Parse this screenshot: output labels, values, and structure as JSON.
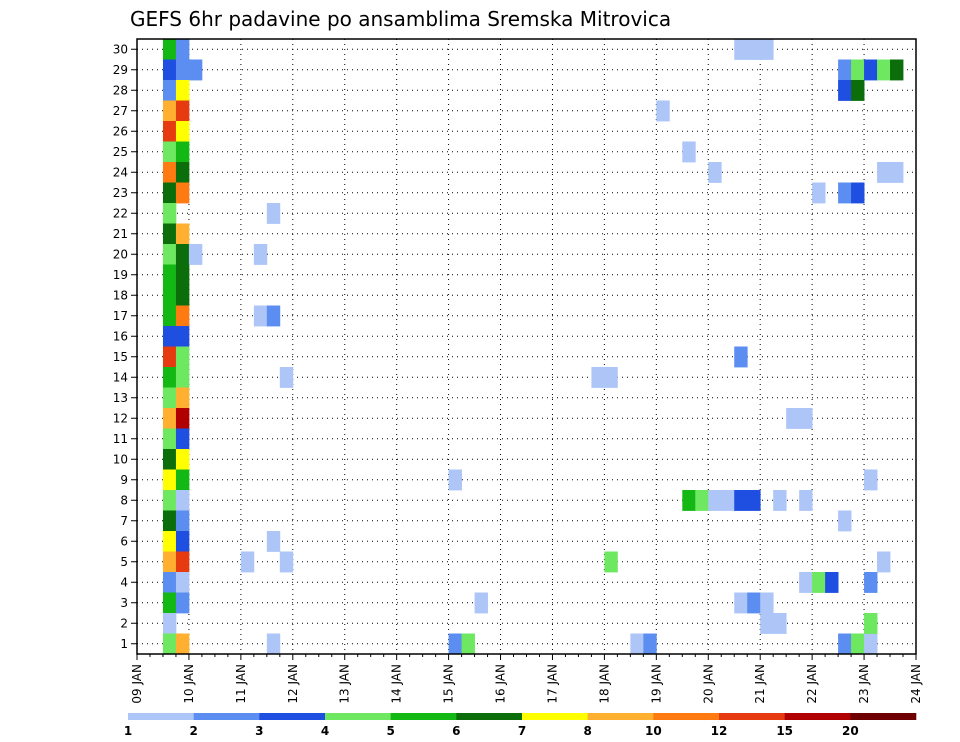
{
  "chart_data": {
    "type": "heatmap",
    "title": "GEFS 6hr padavine po ansamblima Sremska Mitrovica",
    "x_tick_labels": [
      "09 JAN",
      "10 JAN",
      "11 JAN",
      "12 JAN",
      "13 JAN",
      "14 JAN",
      "15 JAN",
      "16 JAN",
      "17 JAN",
      "18 JAN",
      "19 JAN",
      "20 JAN",
      "21 JAN",
      "22 JAN",
      "23 JAN",
      "24 JAN"
    ],
    "y_tick_labels": [
      "1",
      "2",
      "3",
      "4",
      "5",
      "6",
      "7",
      "8",
      "9",
      "10",
      "11",
      "12",
      "13",
      "14",
      "15",
      "16",
      "17",
      "18",
      "19",
      "20",
      "21",
      "22",
      "23",
      "24",
      "25",
      "26",
      "27",
      "28",
      "29",
      "30"
    ],
    "x_unit": "6h step from 09 JAN 00Z",
    "x_range": [
      0,
      60
    ],
    "y_range": [
      0.5,
      30.5
    ],
    "grid": true,
    "colorbar": {
      "placement": "bottom",
      "labels": [
        "1",
        "2",
        "3",
        "4",
        "5",
        "6",
        "7",
        "8",
        "10",
        "12",
        "15",
        "20"
      ],
      "colors": [
        "#aec6f7",
        "#5b8ef0",
        "#1e4fe0",
        "#6ee860",
        "#14b814",
        "#0b6e0b",
        "#ffff00",
        "#ffb030",
        "#ff7a10",
        "#e63a10",
        "#b00000",
        "#6e0000"
      ]
    },
    "cells": [
      [
        2,
        30,
        5
      ],
      [
        3,
        30,
        2
      ],
      [
        2,
        29,
        3
      ],
      [
        3,
        29,
        2
      ],
      [
        4,
        29,
        2
      ],
      [
        2,
        28,
        2
      ],
      [
        3,
        28,
        7
      ],
      [
        2,
        27,
        8
      ],
      [
        3,
        27,
        10
      ],
      [
        2,
        26,
        10
      ],
      [
        3,
        26,
        7
      ],
      [
        2,
        25,
        4
      ],
      [
        3,
        25,
        5
      ],
      [
        2,
        24,
        9
      ],
      [
        3,
        24,
        6
      ],
      [
        2,
        23,
        6
      ],
      [
        3,
        23,
        9
      ],
      [
        2,
        22,
        4
      ],
      [
        2,
        21,
        6
      ],
      [
        3,
        21,
        8
      ],
      [
        2,
        20,
        4
      ],
      [
        3,
        20,
        6
      ],
      [
        4,
        20,
        1
      ],
      [
        2,
        19,
        5
      ],
      [
        3,
        19,
        6
      ],
      [
        2,
        18,
        5
      ],
      [
        3,
        18,
        6
      ],
      [
        2,
        17,
        5
      ],
      [
        3,
        17,
        9
      ],
      [
        2,
        16,
        3
      ],
      [
        3,
        16,
        3
      ],
      [
        2,
        15,
        10
      ],
      [
        3,
        15,
        4
      ],
      [
        2,
        14,
        5
      ],
      [
        3,
        14,
        4
      ],
      [
        2,
        13,
        4
      ],
      [
        3,
        13,
        8
      ],
      [
        2,
        12,
        8
      ],
      [
        3,
        12,
        11
      ],
      [
        2,
        11,
        4
      ],
      [
        3,
        11,
        3
      ],
      [
        2,
        10,
        6
      ],
      [
        3,
        10,
        7
      ],
      [
        2,
        9,
        7
      ],
      [
        3,
        9,
        5
      ],
      [
        2,
        8,
        4
      ],
      [
        3,
        8,
        1
      ],
      [
        2,
        7,
        6
      ],
      [
        3,
        7,
        2
      ],
      [
        2,
        6,
        7
      ],
      [
        3,
        6,
        3
      ],
      [
        2,
        5,
        8
      ],
      [
        3,
        5,
        10
      ],
      [
        2,
        4,
        2
      ],
      [
        3,
        4,
        1
      ],
      [
        2,
        3,
        5
      ],
      [
        3,
        3,
        2
      ],
      [
        2,
        2,
        1
      ],
      [
        2,
        1,
        4
      ],
      [
        3,
        1,
        8
      ],
      [
        10,
        22,
        1
      ],
      [
        9,
        20,
        1
      ],
      [
        9,
        17,
        1
      ],
      [
        10,
        17,
        2
      ],
      [
        11,
        14,
        1
      ],
      [
        8,
        5,
        1
      ],
      [
        11,
        5,
        1
      ],
      [
        10,
        6,
        1
      ],
      [
        10,
        1,
        1
      ],
      [
        24,
        9,
        1
      ],
      [
        26,
        3,
        1
      ],
      [
        24,
        1,
        2
      ],
      [
        25,
        1,
        4
      ],
      [
        35,
        14,
        1
      ],
      [
        36,
        14,
        1
      ],
      [
        36,
        5,
        4
      ],
      [
        40,
        27,
        1
      ],
      [
        38,
        1,
        1
      ],
      [
        39,
        1,
        2
      ],
      [
        42,
        25,
        1
      ],
      [
        42,
        8,
        5
      ],
      [
        43,
        8,
        4
      ],
      [
        44,
        8,
        1
      ],
      [
        45,
        8,
        1
      ],
      [
        44,
        24,
        1
      ],
      [
        46,
        30,
        1
      ],
      [
        47,
        30,
        1
      ],
      [
        48,
        30,
        1
      ],
      [
        46,
        8,
        3
      ],
      [
        47,
        8,
        3
      ],
      [
        46,
        15,
        2
      ],
      [
        46,
        3,
        1
      ],
      [
        47,
        3,
        2
      ],
      [
        48,
        3,
        1
      ],
      [
        48,
        2,
        1
      ],
      [
        49,
        2,
        1
      ],
      [
        49,
        8,
        1
      ],
      [
        50,
        12,
        1
      ],
      [
        51,
        12,
        1
      ],
      [
        51,
        8,
        1
      ],
      [
        51,
        4,
        1
      ],
      [
        52,
        4,
        4
      ],
      [
        53,
        4,
        3
      ],
      [
        52,
        23,
        1
      ],
      [
        54,
        29,
        2
      ],
      [
        54,
        28,
        3
      ],
      [
        54,
        23,
        2
      ],
      [
        55,
        23,
        3
      ],
      [
        54,
        7,
        1
      ],
      [
        54,
        1,
        2
      ],
      [
        55,
        29,
        4
      ],
      [
        55,
        28,
        6
      ],
      [
        55,
        1,
        4
      ],
      [
        56,
        1,
        1
      ],
      [
        56,
        29,
        3
      ],
      [
        57,
        29,
        4
      ],
      [
        58,
        29,
        6
      ],
      [
        56,
        9,
        1
      ],
      [
        56,
        4,
        2
      ],
      [
        56,
        2,
        4
      ],
      [
        57,
        24,
        1
      ],
      [
        58,
        24,
        1
      ],
      [
        57,
        5,
        1
      ]
    ]
  }
}
